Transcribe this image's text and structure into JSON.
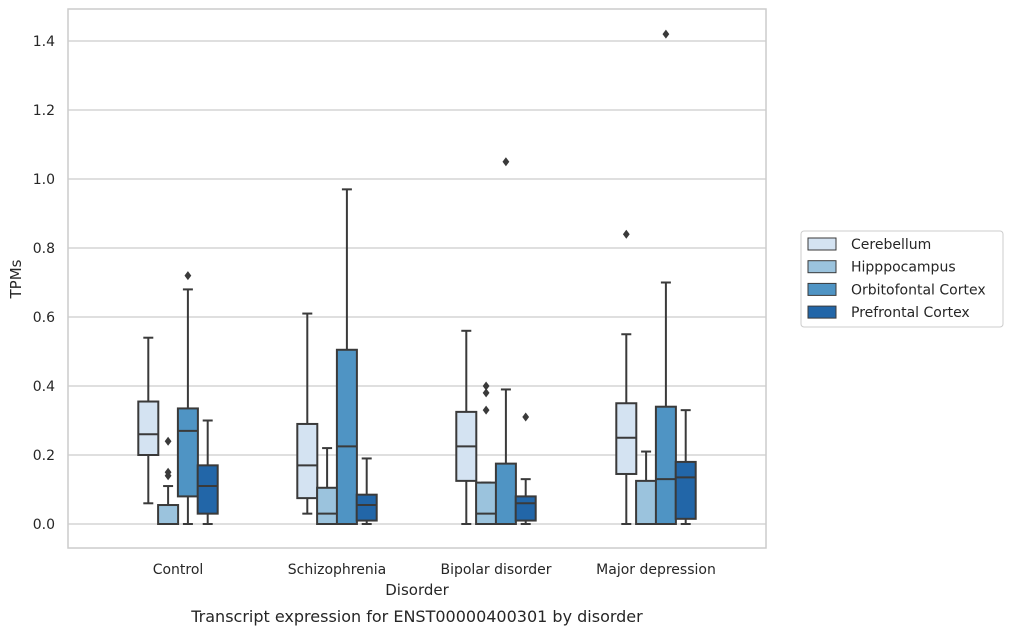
{
  "chart_data": {
    "type": "box",
    "caption": "Transcript expression for ENST00000400301 by disorder",
    "xlabel": "Disorder",
    "ylabel": "TPMs",
    "ylim": [
      -0.07,
      1.49
    ],
    "yticks": [
      "0.0",
      "0.2",
      "0.4",
      "0.6",
      "0.8",
      "1.0",
      "1.2",
      "1.4"
    ],
    "ytick_values": [
      0.0,
      0.2,
      0.4,
      0.6,
      0.8,
      1.0,
      1.2,
      1.4
    ],
    "grid": "horizontal",
    "legend_position": "right",
    "categories": [
      "Control",
      "Schizophrenia",
      "Bipolar disorder",
      "Major depression"
    ],
    "series": [
      {
        "name": "Cerebellum",
        "color": "#d4e3f2",
        "boxes": [
          {
            "whislo": 0.06,
            "q1": 0.2,
            "med": 0.26,
            "q3": 0.355,
            "whishi": 0.54,
            "fliers": []
          },
          {
            "whislo": 0.03,
            "q1": 0.075,
            "med": 0.17,
            "q3": 0.29,
            "whishi": 0.61,
            "fliers": []
          },
          {
            "whislo": 0.0,
            "q1": 0.125,
            "med": 0.225,
            "q3": 0.325,
            "whishi": 0.56,
            "fliers": []
          },
          {
            "whislo": 0.0,
            "q1": 0.145,
            "med": 0.25,
            "q3": 0.35,
            "whishi": 0.55,
            "fliers": [
              0.84
            ]
          }
        ]
      },
      {
        "name": "Hipppocampus",
        "color": "#9bc3dd",
        "boxes": [
          {
            "whislo": 0.0,
            "q1": 0.0,
            "med": 0.0,
            "q3": 0.055,
            "whishi": 0.11,
            "fliers": [
              0.14,
              0.15,
              0.24
            ]
          },
          {
            "whislo": 0.0,
            "q1": 0.0,
            "med": 0.03,
            "q3": 0.105,
            "whishi": 0.22,
            "fliers": []
          },
          {
            "whislo": 0.0,
            "q1": 0.0,
            "med": 0.03,
            "q3": 0.12,
            "whishi": 0.12,
            "fliers": [
              0.33,
              0.38,
              0.4
            ]
          },
          {
            "whislo": 0.0,
            "q1": 0.0,
            "med": 0.0,
            "q3": 0.125,
            "whishi": 0.21,
            "fliers": []
          }
        ]
      },
      {
        "name": "Orbitofontal Cortex",
        "color": "#4f94c4",
        "boxes": [
          {
            "whislo": 0.0,
            "q1": 0.08,
            "med": 0.27,
            "q3": 0.335,
            "whishi": 0.68,
            "fliers": [
              0.72
            ]
          },
          {
            "whislo": 0.0,
            "q1": 0.0,
            "med": 0.225,
            "q3": 0.505,
            "whishi": 0.97,
            "fliers": []
          },
          {
            "whislo": 0.0,
            "q1": 0.0,
            "med": 0.0,
            "q3": 0.175,
            "whishi": 0.39,
            "fliers": [
              1.05
            ]
          },
          {
            "whislo": 0.0,
            "q1": 0.0,
            "med": 0.13,
            "q3": 0.34,
            "whishi": 0.7,
            "fliers": [
              1.42
            ]
          }
        ]
      },
      {
        "name": "Prefrontal Cortex",
        "color": "#2266a8",
        "boxes": [
          {
            "whislo": 0.0,
            "q1": 0.03,
            "med": 0.11,
            "q3": 0.17,
            "whishi": 0.3,
            "fliers": []
          },
          {
            "whislo": 0.0,
            "q1": 0.01,
            "med": 0.055,
            "q3": 0.085,
            "whishi": 0.19,
            "fliers": []
          },
          {
            "whislo": 0.0,
            "q1": 0.01,
            "med": 0.06,
            "q3": 0.08,
            "whishi": 0.13,
            "fliers": [
              0.31
            ]
          },
          {
            "whislo": 0.0,
            "q1": 0.015,
            "med": 0.135,
            "q3": 0.18,
            "whishi": 0.33,
            "fliers": []
          }
        ]
      }
    ]
  }
}
